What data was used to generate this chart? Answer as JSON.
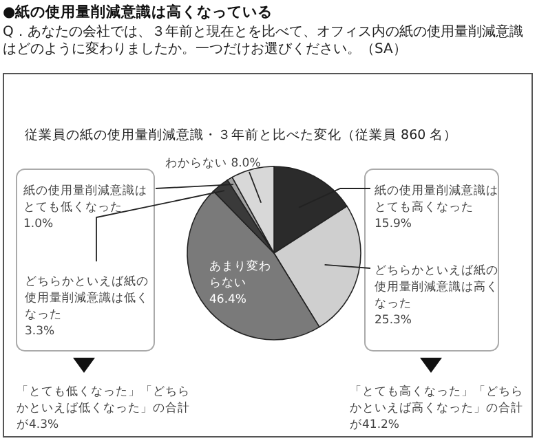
{
  "chart_data": {
    "type": "pie",
    "title": "●紙の使用量削減意識は高くなっている",
    "subtitle": "Q．あなたの会社では、３年前と現在とを比べて、オフィス内の紙の使用量削減意識はどのように変わりましたか。一つだけお選びください。（SA）",
    "categories": [
      "紙の使用量削減意識はとても高くなった",
      "どちらかといえば紙の使用量削減意識は高くなった",
      "あまり変わらない",
      "どちらかといえば紙の使用量削減意識は低くなった",
      "紙の使用量削減意識はとても低くなった",
      "わからない"
    ],
    "values": [
      15.9,
      25.3,
      46.4,
      3.3,
      1.0,
      8.0
    ],
    "value_labels": [
      "15.9%",
      "25.3%",
      "46.4%",
      "3.3%",
      "1.0%",
      "8.0%"
    ],
    "colors": [
      "#2b2b2b",
      "#cfcfcf",
      "#7a7a7a",
      "#3a3a3a",
      "#a0a0a0",
      "#d8d8d8"
    ],
    "annotations": [
      "従業員の紙の使用量削減意識・３年前と比べた変化（従業員 860 名）",
      "「とても低くなった」「どちらかといえば低くなった」の合計が4.3%",
      "「とても高くなった」「どちらかといえば高くなった」の合計が41.2%"
    ]
  }
}
